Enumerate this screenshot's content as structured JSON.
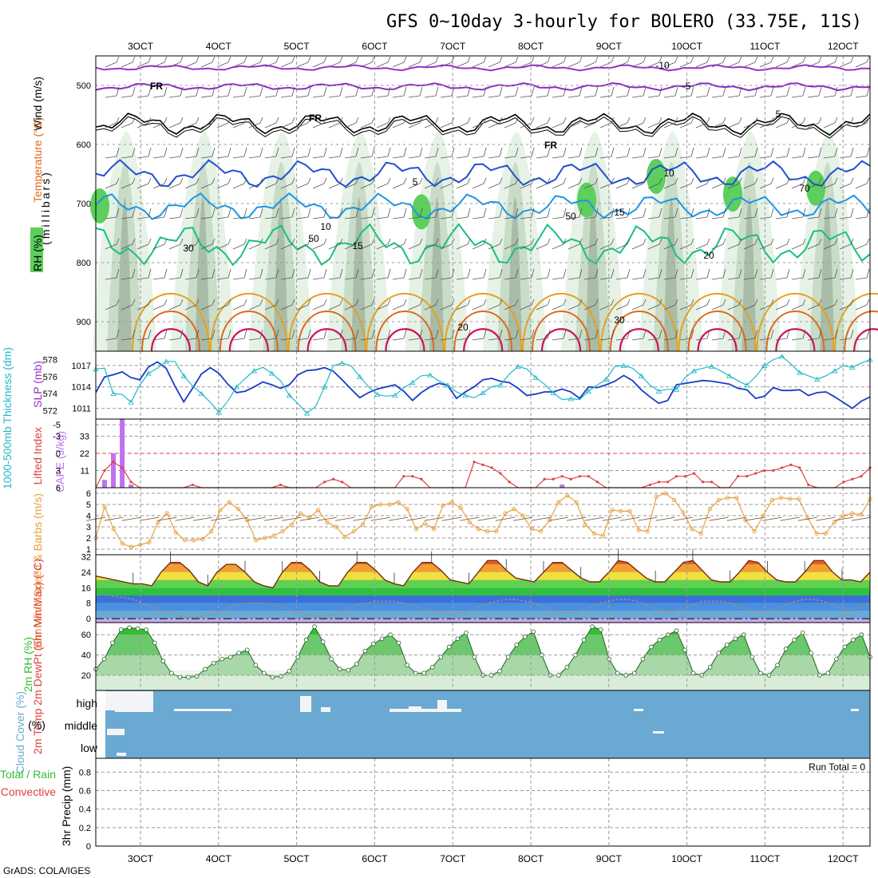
{
  "title": "GFS 0~10day 3-hourly for BOLERO (33.75E, 11S)",
  "credit": "GrADS: COLA/IGES",
  "colors": {
    "grid": "#999999",
    "rh_light": "#e6f2e6",
    "rh_mid": "#c8dcc8",
    "rh_dark": "#a8bca8",
    "rh_green": "#5ccf5c",
    "temp_minus10": "#9b30c8",
    "temp_minus5": "#8a2dc0",
    "temp_freezing": "#000000",
    "temp_5": "#2050d0",
    "temp_10": "#1c96e6",
    "temp_15": "#18c080",
    "temp_20": "#e8a020",
    "temp_25": "#e06818",
    "temp_30": "#d01060",
    "slp": "#1a3cc8",
    "thickness": "#20b8c8",
    "lifted_index": "#e04040",
    "cape": "#c070f0",
    "wind_speed": "#e8a040",
    "barb": "#806040",
    "dewpoint": "#909090",
    "rh2m": "#30c030",
    "cloud_bg": "#6aaad2"
  },
  "chart_data": [
    {
      "id": "upper_air",
      "type": "contour-timeseries",
      "x_labels": [
        "3OCT",
        "4OCT",
        "5OCT",
        "6OCT",
        "7OCT",
        "8OCT",
        "9OCT",
        "10OCT",
        "11OCT",
        "12OCT"
      ],
      "ylabel": "(millibars)",
      "y_ticks": [
        "500",
        "600",
        "700",
        "800",
        "900"
      ],
      "side_labels": {
        "wind": "Wind (m/s)",
        "temp": "Temperature (°C)",
        "rh": "RH (%)"
      },
      "pressure_range": [
        450,
        950
      ],
      "contour_labels": [
        "-10",
        "-5",
        "FR",
        "FR",
        "FR",
        "5",
        "5",
        "10",
        "10",
        "15",
        "15",
        "20",
        "20",
        "30",
        "30",
        "50",
        "50",
        "70"
      ],
      "isotherms": [
        {
          "name": "-10",
          "base_p": 470,
          "amp": 3
        },
        {
          "name": "-5",
          "base_p": 502,
          "amp": 4
        },
        {
          "name": "FR",
          "base_p": 565,
          "amp": 12
        },
        {
          "name": "5",
          "base_p": 650,
          "amp": 15
        },
        {
          "name": "10",
          "base_p": 705,
          "amp": 14
        },
        {
          "name": "15",
          "base_p": 770,
          "amp": 22
        }
      ]
    },
    {
      "id": "slp_thickness",
      "type": "line",
      "left_label": "1000-500mb Thickness (dm)",
      "right_label": "SLP (mb)",
      "left_ticks": [
        "578",
        "576",
        "574",
        "572"
      ],
      "right_ticks": [
        "1017",
        "1014",
        "1011"
      ],
      "slp": [
        1013.2,
        1015.4,
        1015.7,
        1016.1,
        1015.3,
        1015.0,
        1016.8,
        1017.5,
        1016.6,
        1014.1,
        1011.9,
        1013.8,
        1015.8,
        1016.7,
        1015.9,
        1014.4,
        1013.2,
        1013.4,
        1014.0,
        1014.7,
        1014.3,
        1013.8,
        1014.3,
        1015.7,
        1016.3,
        1016.4,
        1016.7,
        1016.2,
        1015.0,
        1013.7,
        1012.5,
        1013.2,
        1013.7,
        1014.0,
        1014.3,
        1013.4,
        1012.1,
        1013.2,
        1014.0,
        1014.5,
        1014.2,
        1012.4,
        1013.3,
        1014.0,
        1015.0,
        1015.2,
        1014.8,
        1014.6,
        1013.8,
        1012.8,
        1013.0,
        1013.3,
        1013.3,
        1013.7,
        1013.3,
        1012.4,
        1014.0,
        1013.9,
        1014.3,
        1014.8,
        1015.6,
        1014.9,
        1013.6,
        1012.6,
        1011.7,
        1012.1,
        1014.3,
        1014.5,
        1014.7,
        1014.9,
        1014.8,
        1014.6,
        1014.4,
        1013.8,
        1013.6,
        1012.4,
        1012.7,
        1013.9,
        1013.5,
        1013.5,
        1013.6,
        1012.8,
        1013.2,
        1013.3,
        1012.6,
        1011.8,
        1011.0,
        1012.0,
        1012.6
      ],
      "thickness": [
        576.9,
        577.0,
        574.0,
        573.9,
        573.0,
        575.0,
        576.4,
        577.0,
        577.8,
        577.8,
        576.1,
        574.9,
        574.0,
        573.0,
        571.8,
        573.1,
        574.8,
        575.8,
        576.7,
        577.1,
        576.4,
        575.5,
        573.8,
        572.8,
        571.7,
        572.5,
        574.8,
        577.3,
        577.6,
        577.3,
        576.0,
        574.8,
        573.9,
        573.7,
        573.8,
        574.7,
        575.3,
        576.1,
        576.2,
        575.5,
        575.0,
        574.2,
        573.8,
        573.5,
        574.1,
        574.8,
        575.0,
        576.3,
        577.2,
        576.9,
        575.9,
        575.1,
        574.1,
        573.3,
        573.4,
        573.3,
        574.3,
        575.0,
        575.7,
        577.2,
        577.3,
        577.0,
        576.1,
        575.0,
        574.3,
        574.5,
        574.5,
        575.9,
        576.7,
        577.0,
        577.2,
        576.7,
        576.1,
        575.5,
        575.0,
        576.0,
        577.3,
        578.0,
        578.4,
        577.5,
        576.5,
        576.1,
        575.7,
        576.1,
        576.7,
        577.3,
        577.1,
        577.6,
        578.0
      ]
    },
    {
      "id": "lifted_cape",
      "type": "bar+line",
      "left_label": "Lifted Index",
      "right_label": "CAPE (J/kg)",
      "li_ticks": [
        "-5",
        "-3",
        "0",
        "3",
        "6"
      ],
      "cape_ticks": [
        "33",
        "22",
        "11"
      ],
      "cape_bars": [
        {
          "t": 1,
          "v": 5
        },
        {
          "t": 2,
          "v": 22
        },
        {
          "t": 3,
          "v": 44
        },
        {
          "t": 4,
          "v": 2
        },
        {
          "t": 53,
          "v": 2
        }
      ],
      "lifted_index": [
        6,
        3,
        1.5,
        2.5,
        5,
        6,
        6,
        6,
        6,
        6,
        6,
        5.5,
        6,
        6,
        6,
        6,
        6,
        6,
        6,
        6,
        6,
        5.5,
        6,
        6,
        6,
        6,
        5,
        4.5,
        5,
        6,
        6,
        6,
        6,
        6,
        6,
        4,
        4,
        4.5,
        6,
        6,
        6,
        6,
        6,
        1.5,
        2,
        2.5,
        3.5,
        5,
        6,
        6,
        6,
        4.5,
        4.5,
        4,
        4.5,
        4,
        4,
        5,
        6,
        6,
        6,
        6,
        6,
        5.5,
        5,
        5,
        4,
        4,
        3.5,
        5,
        5,
        6,
        6,
        4,
        4,
        3.5,
        3,
        3,
        2.5,
        2,
        2.5,
        5.5,
        6,
        6,
        6,
        5,
        4.5,
        4,
        2.5
      ]
    },
    {
      "id": "wind10m",
      "type": "line",
      "left_label": "10m Wind Speed & Barbs (m/s)",
      "y_ticks": [
        "6",
        "5",
        "4",
        "3",
        "2",
        "1"
      ],
      "speed": [
        2,
        4.8,
        2.8,
        1.5,
        1.2,
        1.4,
        1.6,
        3.4,
        4.2,
        2.5,
        1.8,
        1.8,
        1.9,
        2.6,
        4.5,
        5.2,
        4.6,
        3.6,
        1.8,
        2.0,
        2.2,
        2.6,
        3.2,
        4.2,
        3.8,
        4.5,
        3.4,
        3.0,
        2.1,
        2.6,
        3.2,
        4.8,
        5.0,
        5.0,
        5.2,
        4.6,
        2.8,
        3.3,
        2.8,
        4.9,
        5.2,
        4.7,
        3.4,
        2.8,
        2.6,
        2.6,
        4.2,
        4.6,
        4.0,
        2.8,
        2.6,
        3.6,
        5.2,
        5.8,
        5.2,
        3.2,
        2.4,
        2.2,
        4.5,
        4.4,
        4.4,
        2.7,
        2.6,
        5.7,
        6.0,
        5.4,
        4.3,
        2.8,
        2.4,
        4.6,
        5.4,
        5.6,
        5.6,
        3.6,
        2.6,
        4.0,
        5.4,
        5.6,
        5.5,
        5.5,
        3.8,
        2.4,
        2.4,
        3.4,
        4.0,
        4.2,
        4.1,
        5.5
      ]
    },
    {
      "id": "temp2m",
      "type": "area",
      "left_label": "2m Temp 2m DewPt (6hr Min/Max) (°C)",
      "y_ticks": [
        "32",
        "24",
        "16",
        "8",
        "0"
      ],
      "temp": [
        22,
        21,
        20,
        19,
        18,
        18,
        17,
        24,
        29,
        29,
        25,
        19,
        17,
        24,
        28,
        28,
        24,
        19,
        17,
        16,
        24,
        29,
        29,
        25,
        19,
        17,
        17,
        24,
        29,
        29,
        25,
        20,
        18,
        17,
        24,
        29,
        29,
        25,
        20,
        19,
        18,
        24,
        30,
        30,
        25,
        21,
        20,
        19,
        24,
        29,
        29,
        25,
        21,
        19,
        19,
        24,
        30,
        29,
        25,
        21,
        19,
        19,
        24,
        29,
        30,
        25,
        20,
        19,
        19,
        24,
        30,
        29,
        24,
        20,
        19,
        19,
        24,
        30,
        30,
        24,
        20,
        20,
        19,
        24
      ],
      "dewpoint": [
        12,
        12.5,
        11.5,
        11,
        10,
        8,
        6,
        4,
        3,
        1,
        0.5,
        1,
        2,
        3,
        5,
        7,
        8,
        8,
        8,
        7,
        6,
        4,
        3,
        2,
        1,
        2,
        3,
        5,
        7,
        8,
        9,
        9,
        9,
        8,
        7,
        5,
        4,
        3,
        2,
        3,
        4,
        6,
        8,
        9,
        10,
        10,
        9,
        8,
        6,
        4,
        3,
        3,
        4,
        6,
        8,
        9,
        10,
        10,
        9,
        7,
        5,
        4,
        4,
        5,
        7,
        9,
        9,
        9,
        8,
        6,
        5,
        4,
        4,
        5,
        7,
        9,
        10,
        10,
        9,
        7,
        5,
        5,
        6,
        8
      ]
    },
    {
      "id": "rh2m",
      "type": "area",
      "left_label": "2m RH (%)",
      "y_ticks": [
        "60",
        "40",
        "20"
      ],
      "rh": [
        26,
        36,
        52,
        65,
        67,
        66,
        65,
        52,
        34,
        22,
        18,
        18,
        19,
        26,
        32,
        36,
        38,
        42,
        45,
        30,
        22,
        18,
        19,
        24,
        38,
        55,
        68,
        53,
        36,
        26,
        25,
        31,
        44,
        51,
        56,
        60,
        52,
        30,
        22,
        22,
        28,
        38,
        48,
        56,
        62,
        38,
        20,
        20,
        24,
        38,
        50,
        58,
        63,
        40,
        20,
        20,
        28,
        40,
        55,
        68,
        65,
        36,
        22,
        20,
        22,
        36,
        48,
        55,
        60,
        64,
        45,
        22,
        20,
        28,
        42,
        50,
        56,
        60,
        38,
        22,
        20,
        30,
        46,
        55,
        62,
        42,
        20,
        22,
        36,
        48,
        55,
        60,
        38
      ]
    },
    {
      "id": "cloud",
      "type": "bar",
      "left_label": "Cloud Cover (%)",
      "levels": [
        "high",
        "middle",
        "low"
      ]
    },
    {
      "id": "precip",
      "type": "bar",
      "left_label_1": "Total / Rain",
      "left_label_2": "Convective",
      "ylabel": "3hr Precip (mm)",
      "y_ticks": [
        "0.8",
        "0.6",
        "0.4",
        "0.2",
        "0"
      ],
      "run_total": "Run Total = 0",
      "values": []
    }
  ]
}
